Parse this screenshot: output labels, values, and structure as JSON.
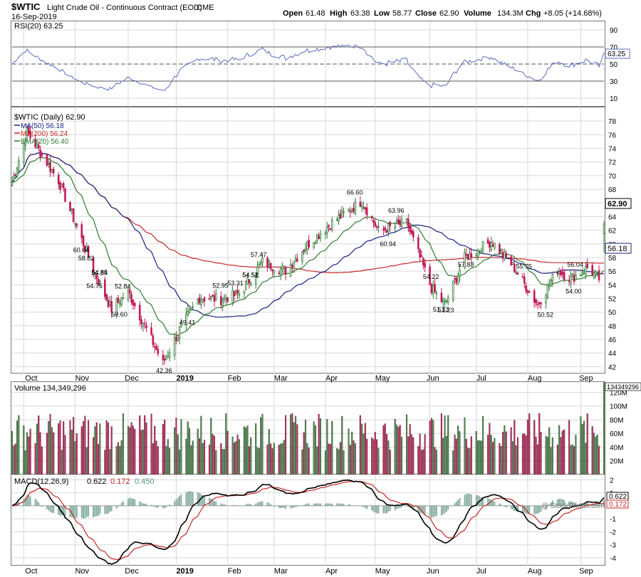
{
  "header": {
    "symbol": "$WTIC",
    "description": "Light Crude Oil - Continuous Contract (EOD)",
    "exchange": "CME",
    "date": "16-Sep-2019",
    "open_label": "Open",
    "open": "61.48",
    "high_label": "High",
    "high": "63.38",
    "low_label": "Low",
    "low": "58.77",
    "close_label": "Close",
    "close": "62.90",
    "volume_label": "Volume",
    "volume": "134.3M",
    "chg_label": "Chg",
    "chg": "+8.05 (+14.68%)"
  },
  "copyright": "@ StockCharts.com",
  "colors": {
    "up": "#2f7d32",
    "down": "#c2185b",
    "vol_up": "#4e8a4e",
    "vol_down": "#c2285e",
    "ma50": "#1a237e",
    "ma200": "#c62828",
    "ema20": "#2e7d32",
    "rsi": "#5c6bc0",
    "macd": "#000000",
    "signal": "#c62828",
    "hist": "#7fa89a",
    "grid": "#d8d8d8"
  },
  "x_axis": {
    "labels": [
      "Oct",
      "Nov",
      "Dec",
      "2019",
      "Feb",
      "Mar",
      "Apr",
      "May",
      "Jun",
      "Jul",
      "Aug",
      "Sep"
    ]
  },
  "rsi_panel": {
    "legend": "RSI(20) 63.25",
    "value_label": "63.25",
    "ticks": [
      "90",
      "70",
      "50",
      "30",
      "10"
    ]
  },
  "price_panel": {
    "legend": "$WTIC (Daily) 62.90",
    "ma50_legend": "MA(50) 56.18",
    "ma200_legend": "MA(200) 56.24",
    "ema20_legend": "EMA(20) 56.40",
    "last_price_label": "62.90",
    "ma50_label": "56.18",
    "ticks": [
      "78",
      "76",
      "74",
      "72",
      "70",
      "68",
      "66",
      "64",
      "62",
      "60",
      "58",
      "56",
      "54",
      "52",
      "50",
      "48",
      "46",
      "44",
      "42"
    ],
    "annotations": [
      "54.75",
      "54.22",
      "52.95",
      "49.41",
      "42.36",
      "53.31",
      "54.51",
      "55.75",
      "51.33",
      "51.23",
      "57.88",
      "54.52",
      "66.60",
      "63.96",
      "60.04",
      "50.60",
      "54.84",
      "60.94",
      "56.04",
      "54.85",
      "58.82",
      "57.47",
      "50.52",
      "52.84",
      "54.00"
    ]
  },
  "volume_panel": {
    "legend": "Volume 134,349,296",
    "value_label": "134349296",
    "ticks": [
      "120M",
      "100M",
      "80M",
      "60M",
      "40M",
      "20M"
    ]
  },
  "macd_panel": {
    "legend_text": "MACD(12,26,9)",
    "macd_value": "0.622",
    "signal_value": "0.172",
    "hist_value": "0.450",
    "macd_label": "0.622",
    "signal_label": "0.172",
    "ticks": [
      "2",
      "1",
      "-1",
      "-2",
      "-3",
      "-4"
    ]
  },
  "chart_data": {
    "type": "candlestick",
    "title": "$WTIC Light Crude Oil - Continuous Contract (EOD)",
    "date_range": [
      "2018-09-24",
      "2019-09-16"
    ],
    "price_ylim": [
      41,
      80
    ],
    "rsi_ylim": [
      0,
      100
    ],
    "volume_ylim_millions": [
      0,
      135
    ],
    "macd_ylim": [
      -4.6,
      2.4
    ],
    "price_anchors": [
      {
        "date": "2018-09-24",
        "close": 69.0
      },
      {
        "date": "2018-10-03",
        "close": 76.4
      },
      {
        "date": "2018-10-22",
        "close": 69.3
      },
      {
        "date": "2018-11-13",
        "close": 55.7
      },
      {
        "date": "2018-11-23",
        "close": 50.4
      },
      {
        "date": "2018-12-03",
        "close": 53.0
      },
      {
        "date": "2018-12-24",
        "close": 42.5
      },
      {
        "date": "2019-01-04",
        "close": 47.9
      },
      {
        "date": "2019-01-15",
        "close": 52.1
      },
      {
        "date": "2019-01-28",
        "close": 51.9
      },
      {
        "date": "2019-02-08",
        "close": 52.7
      },
      {
        "date": "2019-02-22",
        "close": 57.3
      },
      {
        "date": "2019-03-08",
        "close": 56.1
      },
      {
        "date": "2019-03-21",
        "close": 59.9
      },
      {
        "date": "2019-04-05",
        "close": 63.1
      },
      {
        "date": "2019-04-23",
        "close": 66.3
      },
      {
        "date": "2019-05-03",
        "close": 61.9
      },
      {
        "date": "2019-05-20",
        "close": 63.1
      },
      {
        "date": "2019-06-04",
        "close": 53.5
      },
      {
        "date": "2019-06-12",
        "close": 51.1
      },
      {
        "date": "2019-06-24",
        "close": 57.9
      },
      {
        "date": "2019-07-10",
        "close": 60.4
      },
      {
        "date": "2019-07-23",
        "close": 56.8
      },
      {
        "date": "2019-08-07",
        "close": 51.1
      },
      {
        "date": "2019-08-19",
        "close": 56.2
      },
      {
        "date": "2019-08-27",
        "close": 54.9
      },
      {
        "date": "2019-09-06",
        "close": 56.5
      },
      {
        "date": "2019-09-13",
        "close": 54.9
      },
      {
        "date": "2019-09-16",
        "close": 62.9
      }
    ],
    "ma50_last": 56.18,
    "ma200_last": 56.24,
    "ema20_last": 56.4,
    "rsi_last": 63.25,
    "volume_last": 134349296,
    "macd_last": 0.622,
    "signal_last": 0.172,
    "hist_last": 0.45
  }
}
